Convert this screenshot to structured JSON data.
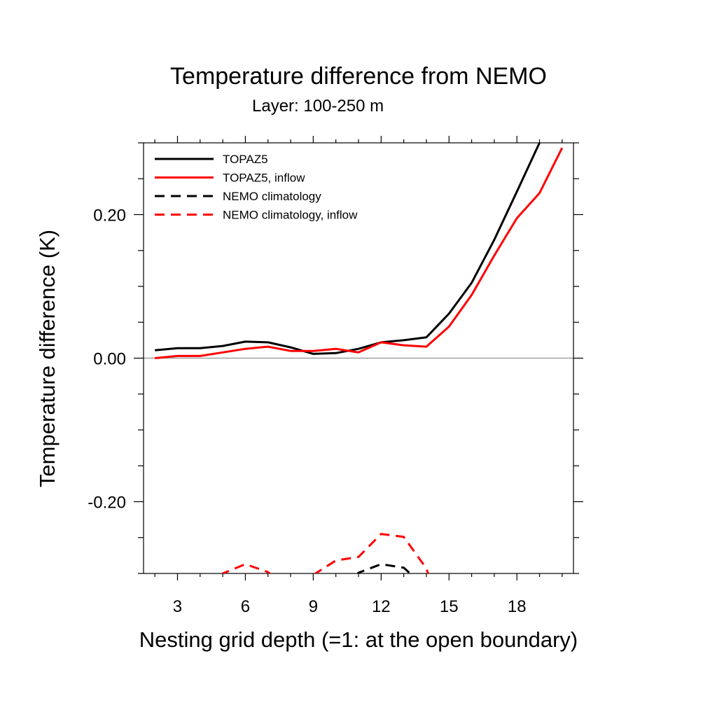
{
  "chart_data": {
    "type": "line",
    "title": "Temperature difference from NEMO",
    "subtitle": "Layer: 100-250 m",
    "xlabel": "Nesting grid depth (=1: at the open boundary)",
    "ylabel": "Temperature difference (K)",
    "xlim": [
      1.5,
      20.5
    ],
    "ylim": [
      -0.3,
      0.3
    ],
    "x_ticks": [
      3,
      6,
      9,
      12,
      15,
      18
    ],
    "x_tick_labels": [
      "3",
      "6",
      "9",
      "12",
      "15",
      "18"
    ],
    "y_ticks": [
      -0.2,
      0.0,
      0.2
    ],
    "y_tick_labels": [
      "-0.20",
      "0.00",
      "0.20"
    ],
    "zero_line": true,
    "grid": false,
    "legend_position": "top-left",
    "series": [
      {
        "name": "TOPAZ5",
        "color": "#000000",
        "dash": "solid",
        "x": [
          2,
          3,
          4,
          5,
          6,
          7,
          8,
          9,
          10,
          11,
          12,
          13,
          14,
          15,
          16,
          17,
          18,
          19
        ],
        "y": [
          0.011,
          0.014,
          0.014,
          0.017,
          0.023,
          0.022,
          0.015,
          0.006,
          0.007,
          0.013,
          0.022,
          0.025,
          0.029,
          0.062,
          0.105,
          0.165,
          0.232,
          0.3
        ]
      },
      {
        "name": "TOPAZ5, inflow",
        "color": "#ff0000",
        "dash": "solid",
        "x": [
          2,
          3,
          4,
          5,
          6,
          7,
          8,
          9,
          10,
          11,
          12,
          13,
          14,
          15,
          16,
          17,
          18,
          19,
          20
        ],
        "y": [
          0.0,
          0.003,
          0.003,
          0.008,
          0.013,
          0.016,
          0.01,
          0.01,
          0.013,
          0.008,
          0.022,
          0.018,
          0.016,
          0.044,
          0.088,
          0.143,
          0.195,
          0.23,
          0.293
        ]
      },
      {
        "name": "NEMO climatology",
        "color": "#000000",
        "dash": "dashed",
        "x": [
          10.9,
          11,
          12,
          13,
          13.35
        ],
        "y": [
          -0.303,
          -0.299,
          -0.287,
          -0.292,
          -0.302
        ]
      },
      {
        "name": "NEMO climatology, inflow",
        "color": "#ff0000",
        "dash": "dashed",
        "segments": [
          {
            "x": [
              4.9,
              5,
              6,
              7,
              7.15
            ],
            "y": [
              -0.303,
              -0.3,
              -0.287,
              -0.298,
              -0.302
            ]
          },
          {
            "x": [
              9.0,
              10,
              11,
              12,
              13,
              14,
              14.1
            ],
            "y": [
              -0.302,
              -0.282,
              -0.277,
              -0.245,
              -0.249,
              -0.293,
              -0.302
            ]
          }
        ]
      }
    ]
  }
}
